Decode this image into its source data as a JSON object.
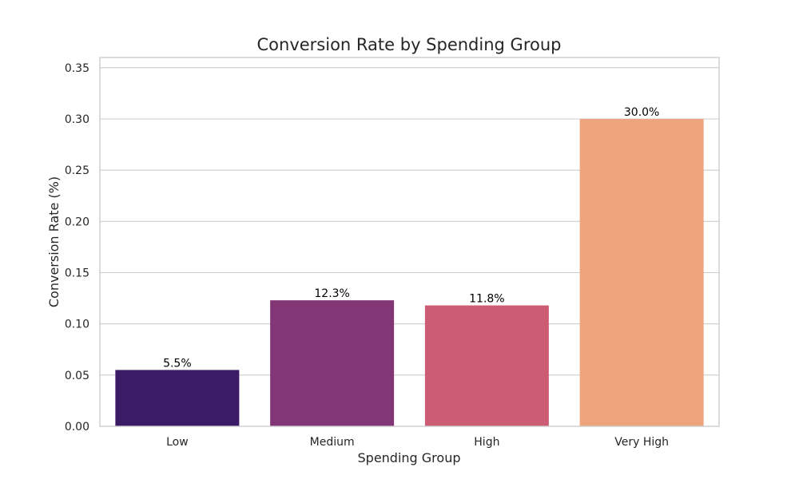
{
  "chart_data": {
    "type": "bar",
    "title": "Conversion Rate by Spending Group",
    "xlabel": "Spending Group",
    "ylabel": "Conversion Rate (%)",
    "categories": [
      "Low",
      "Medium",
      "High",
      "Very High"
    ],
    "values": [
      0.055,
      0.123,
      0.118,
      0.3
    ],
    "data_labels": [
      "5.5%",
      "12.3%",
      "11.8%",
      "30.0%"
    ],
    "colors": [
      "#3b1a66",
      "#823675",
      "#cb5c73",
      "#eea47c"
    ],
    "ylim": [
      0,
      0.36
    ],
    "yticks": [
      0.0,
      0.05,
      0.1,
      0.15,
      0.2,
      0.25,
      0.3,
      0.35
    ],
    "ytick_labels": [
      "0.00",
      "0.05",
      "0.10",
      "0.15",
      "0.20",
      "0.25",
      "0.30",
      "0.35"
    ],
    "grid": true,
    "grid_axis": "y"
  }
}
